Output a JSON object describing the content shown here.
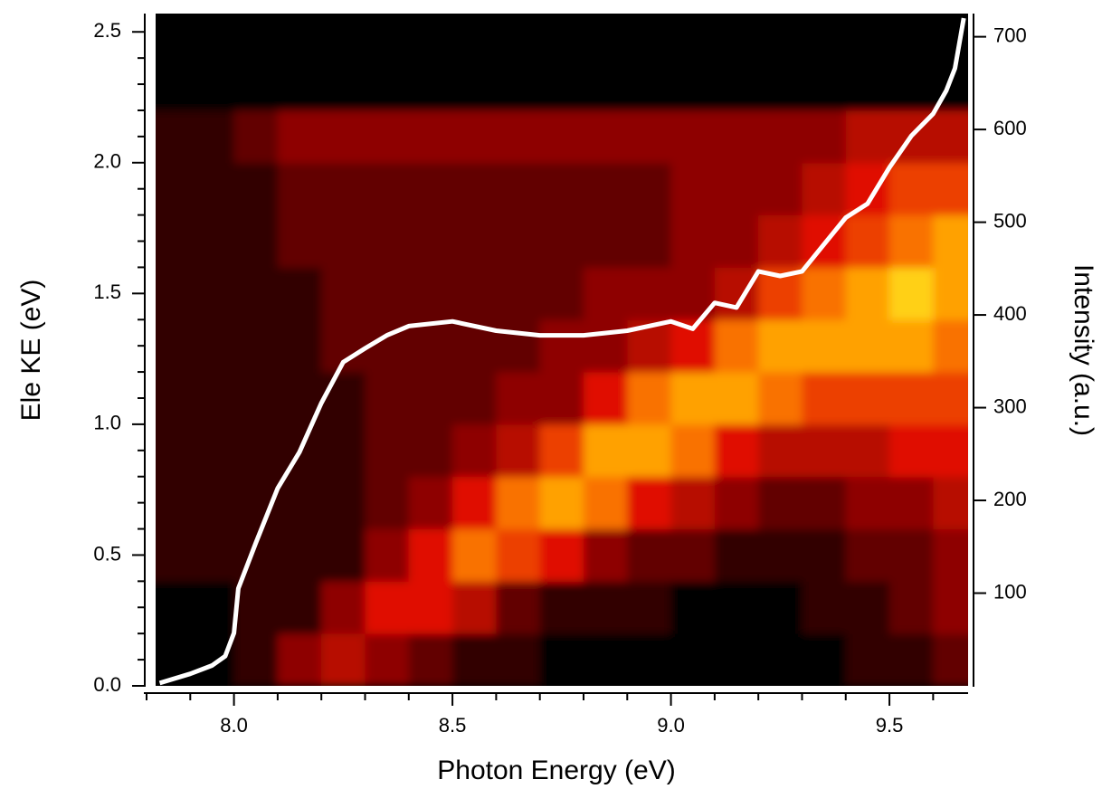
{
  "chart_data": {
    "type": "heatmap",
    "xlabel": "Photon Energy (eV)",
    "ylabel": "Ele KE (eV)",
    "y2label": "Intensity (a.u.)",
    "xlim": [
      7.8,
      9.68
    ],
    "ylim": [
      0,
      2.57
    ],
    "y2lim": [
      0,
      725
    ],
    "xticks": [
      {
        "value": 8,
        "label": "8.0"
      },
      {
        "value": 8.5,
        "label": "8.5"
      },
      {
        "value": 9,
        "label": "9.0"
      },
      {
        "value": 9.5,
        "label": "9.5"
      }
    ],
    "xminorticks": [
      7.8,
      7.9,
      8.1,
      8.2,
      8.3,
      8.4,
      8.6,
      8.7,
      8.8,
      8.9,
      9.1,
      9.2,
      9.3,
      9.4,
      9.6
    ],
    "yticks": [
      {
        "value": 0,
        "label": "0.0"
      },
      {
        "value": 0.5,
        "label": "0.5"
      },
      {
        "value": 1,
        "label": "1.0"
      },
      {
        "value": 1.5,
        "label": "1.5"
      },
      {
        "value": 2,
        "label": "2.0"
      },
      {
        "value": 2.5,
        "label": "2.5"
      }
    ],
    "yminorticks": [
      0.1,
      0.2,
      0.3,
      0.4,
      0.6,
      0.7,
      0.8,
      0.9,
      1.1,
      1.2,
      1.3,
      1.4,
      1.6,
      1.7,
      1.8,
      1.9,
      2.1,
      2.2,
      2.3,
      2.4
    ],
    "y2ticks": [
      100,
      200,
      300,
      400,
      500,
      600,
      700
    ],
    "x_bins": [
      7.8,
      7.9,
      8.0,
      8.1,
      8.2,
      8.3,
      8.4,
      8.5,
      8.6,
      8.7,
      8.8,
      8.9,
      9.0,
      9.1,
      9.2,
      9.3,
      9.4,
      9.5,
      9.6,
      9.7
    ],
    "y_bins": [
      0,
      0.2,
      0.4,
      0.6,
      0.8,
      1.0,
      1.2,
      1.4,
      1.6,
      1.8,
      2.0,
      2.2,
      2.4,
      2.6
    ],
    "zlim": [
      0,
      10
    ],
    "colormap": [
      "#000000",
      "#7a0000",
      "#e01000",
      "#ff8a00",
      "#ffff20"
    ],
    "background": "#000000",
    "z": [
      [
        0,
        0,
        1,
        3,
        4,
        3,
        2,
        1,
        1,
        0,
        0,
        0,
        0,
        0,
        0,
        0,
        1,
        1,
        2
      ],
      [
        0,
        0,
        1,
        1,
        3,
        5,
        5,
        4,
        2,
        1,
        1,
        1,
        0,
        0,
        0,
        1,
        1,
        2,
        3
      ],
      [
        1,
        1,
        1,
        1,
        1,
        3,
        5,
        7,
        6,
        5,
        3,
        2,
        2,
        1,
        1,
        1,
        2,
        2,
        3
      ],
      [
        1,
        1,
        1,
        1,
        1,
        2,
        3,
        5,
        7,
        8,
        7,
        5,
        4,
        3,
        2,
        2,
        3,
        3,
        4
      ],
      [
        1,
        1,
        1,
        1,
        1,
        2,
        2,
        3,
        4,
        6,
        8,
        8,
        7,
        5,
        4,
        4,
        4,
        5,
        5
      ],
      [
        1,
        1,
        1,
        1,
        1,
        2,
        2,
        2,
        3,
        3,
        5,
        7,
        8,
        8,
        7,
        6,
        6,
        6,
        6
      ],
      [
        1,
        1,
        1,
        1,
        2,
        2,
        2,
        2,
        2,
        3,
        3,
        4,
        5,
        7,
        8,
        8,
        8,
        8,
        7
      ],
      [
        1,
        1,
        1,
        1,
        2,
        2,
        2,
        2,
        2,
        2,
        3,
        3,
        3,
        4,
        6,
        7,
        8,
        9,
        8
      ],
      [
        1,
        1,
        1,
        2,
        2,
        2,
        2,
        2,
        2,
        2,
        2,
        2,
        3,
        3,
        4,
        5,
        6,
        7,
        8
      ],
      [
        1,
        1,
        1,
        2,
        2,
        2,
        2,
        2,
        2,
        2,
        2,
        2,
        3,
        3,
        3,
        4,
        5,
        6,
        6
      ],
      [
        1,
        1,
        2,
        3,
        3,
        3,
        3,
        3,
        3,
        3,
        3,
        3,
        3,
        3,
        3,
        3,
        4,
        4,
        4
      ],
      [
        0,
        0,
        0,
        0,
        0,
        0,
        0,
        0,
        0,
        0,
        0,
        0,
        0,
        0,
        0,
        0,
        0,
        0,
        0
      ],
      [
        0,
        0,
        0,
        0,
        0,
        0,
        0,
        0,
        0,
        0,
        0,
        0,
        0,
        0,
        0,
        0,
        0,
        0,
        0
      ]
    ],
    "series": [
      {
        "type": "line",
        "axis": "y2",
        "color": "#ffffff",
        "x": [
          7.83,
          7.9,
          7.95,
          7.98,
          8.0,
          8.01,
          8.05,
          8.1,
          8.15,
          8.2,
          8.25,
          8.3,
          8.35,
          8.4,
          8.5,
          8.6,
          8.7,
          8.8,
          8.9,
          9.0,
          9.05,
          9.1,
          9.15,
          9.2,
          9.25,
          9.3,
          9.35,
          9.4,
          9.45,
          9.5,
          9.55,
          9.6,
          9.63,
          9.65,
          9.67
        ],
        "values": [
          3,
          13,
          22,
          32,
          57,
          105,
          154,
          213,
          252,
          305,
          349,
          364,
          378,
          388,
          393,
          383,
          378,
          378,
          383,
          393,
          385,
          413,
          408,
          447,
          442,
          447,
          476,
          505,
          520,
          559,
          593,
          617,
          642,
          666,
          720
        ]
      }
    ]
  }
}
